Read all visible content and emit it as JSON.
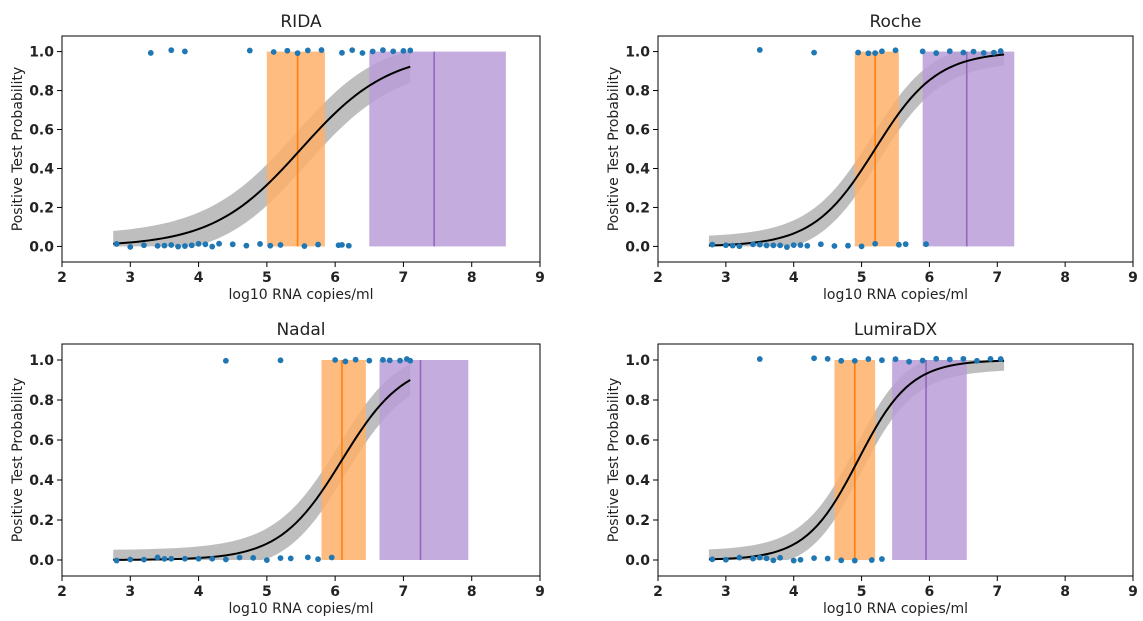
{
  "colors": {
    "points": "#1f77b4",
    "curve": "#000000",
    "ci_band": "#a8a8a8",
    "orange_box": "#ffb06a",
    "orange_line": "#ff7f0e",
    "purple_box": "#bb9ed8",
    "purple_line": "#9467bd",
    "axes": "#000000"
  },
  "chart_data": [
    {
      "type": "scatter",
      "title": "RIDA",
      "xlabel": "log10 RNA copies/ml",
      "ylabel": "Positive Test Probability",
      "xlim": [
        2,
        9
      ],
      "ylim": [
        -0.08,
        1.08
      ],
      "xticks": [
        "2",
        "3",
        "4",
        "5",
        "6",
        "7",
        "8",
        "9"
      ],
      "yticks": [
        "0.0",
        "0.2",
        "0.4",
        "0.6",
        "0.8",
        "1.0"
      ],
      "curve": {
        "x0": 5.5,
        "k": 1.55,
        "xmin": 2.75,
        "xmax": 7.1,
        "band": 0.09
      },
      "orange_range": [
        5.0,
        5.85
      ],
      "orange_line": 5.45,
      "purple_range": [
        6.5,
        8.5
      ],
      "purple_line": 7.45,
      "points_negative": [
        2.8,
        3.0,
        3.2,
        3.4,
        3.5,
        3.6,
        3.7,
        3.8,
        3.9,
        4.0,
        4.1,
        4.2,
        4.3,
        4.5,
        4.7,
        4.9,
        5.05,
        5.2,
        5.55,
        5.75,
        6.05,
        6.1,
        6.2
      ],
      "points_positive": [
        3.3,
        3.6,
        3.8,
        4.75,
        5.1,
        5.3,
        5.45,
        5.6,
        5.8,
        6.1,
        6.25,
        6.4,
        6.55,
        6.7,
        6.85,
        7.0,
        7.1
      ]
    },
    {
      "type": "scatter",
      "title": "Roche",
      "xlabel": "log10 RNA copies/ml",
      "ylabel": "Positive Test Probability",
      "xlim": [
        2,
        9
      ],
      "ylim": [
        -0.08,
        1.08
      ],
      "xticks": [
        "2",
        "3",
        "4",
        "5",
        "6",
        "7",
        "8",
        "9"
      ],
      "yticks": [
        "0.0",
        "0.2",
        "0.4",
        "0.6",
        "0.8",
        "1.0"
      ],
      "curve": {
        "x0": 5.2,
        "k": 2.2,
        "xmin": 2.75,
        "xmax": 7.1,
        "band": 0.07
      },
      "orange_range": [
        4.9,
        5.55
      ],
      "orange_line": 5.2,
      "purple_range": [
        5.9,
        7.25
      ],
      "purple_line": 6.55,
      "points_negative": [
        2.8,
        3.0,
        3.1,
        3.2,
        3.4,
        3.5,
        3.6,
        3.7,
        3.8,
        3.9,
        4.0,
        4.1,
        4.2,
        4.4,
        4.6,
        4.8,
        5.0,
        5.2,
        5.55,
        5.65,
        5.95
      ],
      "points_positive": [
        3.5,
        4.3,
        4.95,
        5.1,
        5.2,
        5.3,
        5.5,
        5.9,
        6.1,
        6.3,
        6.5,
        6.65,
        6.8,
        6.95,
        7.05
      ]
    },
    {
      "type": "scatter",
      "title": "Nadal",
      "xlabel": "log10 RNA copies/ml",
      "ylabel": "Positive Test Probability",
      "xlim": [
        2,
        9
      ],
      "ylim": [
        -0.08,
        1.08
      ],
      "xticks": [
        "2",
        "3",
        "4",
        "5",
        "6",
        "7",
        "8",
        "9"
      ],
      "yticks": [
        "0.0",
        "0.2",
        "0.4",
        "0.6",
        "0.8",
        "1.0"
      ],
      "curve": {
        "x0": 6.1,
        "k": 2.2,
        "xmin": 2.75,
        "xmax": 7.1,
        "band": 0.08
      },
      "orange_range": [
        5.8,
        6.45
      ],
      "orange_line": 6.1,
      "purple_range": [
        6.65,
        7.95
      ],
      "purple_line": 7.25,
      "points_negative": [
        2.8,
        3.0,
        3.2,
        3.4,
        3.5,
        3.6,
        3.8,
        4.0,
        4.2,
        4.4,
        4.6,
        4.8,
        5.0,
        5.2,
        5.35,
        5.6,
        5.75,
        5.95
      ],
      "points_positive": [
        4.4,
        5.2,
        6.0,
        6.15,
        6.3,
        6.5,
        6.7,
        6.8,
        6.95,
        7.05,
        7.1
      ]
    },
    {
      "type": "scatter",
      "title": "LumiraDX",
      "xlabel": "log10 RNA copies/ml",
      "ylabel": "Positive Test Probability",
      "xlim": [
        2,
        9
      ],
      "ylim": [
        -0.08,
        1.08
      ],
      "xticks": [
        "2",
        "3",
        "4",
        "5",
        "6",
        "7",
        "8",
        "9"
      ],
      "yticks": [
        "0.0",
        "0.2",
        "0.4",
        "0.6",
        "0.8",
        "1.0"
      ],
      "curve": {
        "x0": 4.95,
        "k": 2.6,
        "xmin": 2.75,
        "xmax": 7.1,
        "band": 0.07
      },
      "orange_range": [
        4.6,
        5.2
      ],
      "orange_line": 4.9,
      "purple_range": [
        5.45,
        6.55
      ],
      "purple_line": 5.95,
      "points_negative": [
        2.8,
        3.0,
        3.2,
        3.4,
        3.5,
        3.6,
        3.7,
        3.8,
        4.0,
        4.1,
        4.3,
        4.5,
        4.7,
        4.9,
        5.15,
        5.3
      ],
      "points_positive": [
        3.5,
        4.3,
        4.5,
        4.7,
        4.9,
        5.1,
        5.3,
        5.5,
        5.7,
        5.9,
        6.1,
        6.3,
        6.5,
        6.7,
        6.9,
        7.05
      ]
    }
  ]
}
